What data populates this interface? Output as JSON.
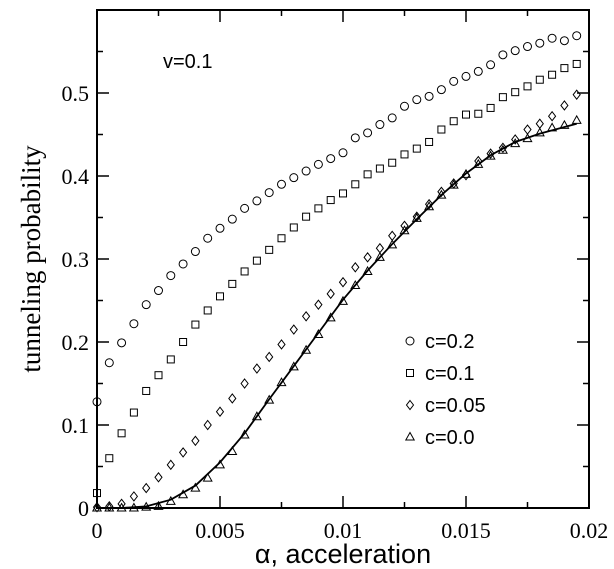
{
  "chart_data": {
    "type": "scatter",
    "title": "",
    "xlabel": "α, acceleration",
    "ylabel": "tunneling probability",
    "xlim": [
      0,
      0.02
    ],
    "ylim": [
      0,
      0.6
    ],
    "x_ticks": [
      "0",
      "0.005",
      "0.01",
      "0.015",
      "0.02"
    ],
    "y_ticks": [
      "0",
      "0.1",
      "0.2",
      "0.3",
      "0.4",
      "0.5"
    ],
    "annotation": "v=0.1",
    "grid": false,
    "legend_position": "bottom-right",
    "series": [
      {
        "name": "c=0.2",
        "marker": "circle",
        "points": [
          [
            0.0,
            0.128
          ],
          [
            0.0005,
            0.175
          ],
          [
            0.001,
            0.199
          ],
          [
            0.0015,
            0.222
          ],
          [
            0.002,
            0.245
          ],
          [
            0.0025,
            0.262
          ],
          [
            0.003,
            0.28
          ],
          [
            0.0035,
            0.294
          ],
          [
            0.004,
            0.309
          ],
          [
            0.0045,
            0.325
          ],
          [
            0.005,
            0.337
          ],
          [
            0.0055,
            0.348
          ],
          [
            0.006,
            0.361
          ],
          [
            0.0065,
            0.37
          ],
          [
            0.007,
            0.38
          ],
          [
            0.0075,
            0.39
          ],
          [
            0.008,
            0.398
          ],
          [
            0.0085,
            0.406
          ],
          [
            0.009,
            0.414
          ],
          [
            0.0095,
            0.421
          ],
          [
            0.01,
            0.428
          ],
          [
            0.0105,
            0.446
          ],
          [
            0.011,
            0.452
          ],
          [
            0.0115,
            0.462
          ],
          [
            0.012,
            0.47
          ],
          [
            0.0125,
            0.484
          ],
          [
            0.013,
            0.492
          ],
          [
            0.0135,
            0.496
          ],
          [
            0.014,
            0.504
          ],
          [
            0.0145,
            0.514
          ],
          [
            0.015,
            0.52
          ],
          [
            0.0155,
            0.526
          ],
          [
            0.016,
            0.534
          ],
          [
            0.0165,
            0.546
          ],
          [
            0.017,
            0.551
          ],
          [
            0.0175,
            0.556
          ],
          [
            0.018,
            0.56
          ],
          [
            0.0185,
            0.566
          ],
          [
            0.019,
            0.563
          ],
          [
            0.0195,
            0.569
          ]
        ]
      },
      {
        "name": "c=0.1",
        "marker": "square",
        "points": [
          [
            0.0,
            0.018
          ],
          [
            0.0005,
            0.06
          ],
          [
            0.001,
            0.09
          ],
          [
            0.0015,
            0.115
          ],
          [
            0.002,
            0.141
          ],
          [
            0.0025,
            0.16
          ],
          [
            0.003,
            0.179
          ],
          [
            0.0035,
            0.2
          ],
          [
            0.004,
            0.221
          ],
          [
            0.0045,
            0.238
          ],
          [
            0.005,
            0.255
          ],
          [
            0.0055,
            0.27
          ],
          [
            0.006,
            0.285
          ],
          [
            0.0065,
            0.298
          ],
          [
            0.007,
            0.311
          ],
          [
            0.0075,
            0.325
          ],
          [
            0.008,
            0.338
          ],
          [
            0.0085,
            0.351
          ],
          [
            0.009,
            0.361
          ],
          [
            0.0095,
            0.371
          ],
          [
            0.01,
            0.379
          ],
          [
            0.0105,
            0.39
          ],
          [
            0.011,
            0.402
          ],
          [
            0.0115,
            0.409
          ],
          [
            0.012,
            0.416
          ],
          [
            0.0125,
            0.426
          ],
          [
            0.013,
            0.433
          ],
          [
            0.0135,
            0.441
          ],
          [
            0.014,
            0.456
          ],
          [
            0.0145,
            0.466
          ],
          [
            0.015,
            0.474
          ],
          [
            0.0155,
            0.475
          ],
          [
            0.016,
            0.482
          ],
          [
            0.0165,
            0.495
          ],
          [
            0.017,
            0.501
          ],
          [
            0.0175,
            0.508
          ],
          [
            0.018,
            0.516
          ],
          [
            0.0185,
            0.522
          ],
          [
            0.019,
            0.53
          ],
          [
            0.0195,
            0.535
          ]
        ]
      },
      {
        "name": "c=0.05",
        "marker": "diamond",
        "points": [
          [
            0.0,
            0.001
          ],
          [
            0.0005,
            0.002
          ],
          [
            0.001,
            0.005
          ],
          [
            0.0015,
            0.014
          ],
          [
            0.002,
            0.024
          ],
          [
            0.0025,
            0.037
          ],
          [
            0.003,
            0.052
          ],
          [
            0.0035,
            0.067
          ],
          [
            0.004,
            0.081
          ],
          [
            0.0045,
            0.1
          ],
          [
            0.005,
            0.116
          ],
          [
            0.0055,
            0.132
          ],
          [
            0.006,
            0.15
          ],
          [
            0.0065,
            0.168
          ],
          [
            0.007,
            0.182
          ],
          [
            0.0075,
            0.197
          ],
          [
            0.008,
            0.215
          ],
          [
            0.0085,
            0.231
          ],
          [
            0.009,
            0.245
          ],
          [
            0.0095,
            0.258
          ],
          [
            0.01,
            0.272
          ],
          [
            0.0105,
            0.29
          ],
          [
            0.011,
            0.302
          ],
          [
            0.0115,
            0.313
          ],
          [
            0.012,
            0.328
          ],
          [
            0.0125,
            0.34
          ],
          [
            0.013,
            0.351
          ],
          [
            0.0135,
            0.366
          ],
          [
            0.014,
            0.381
          ],
          [
            0.0145,
            0.391
          ],
          [
            0.015,
            0.401
          ],
          [
            0.0155,
            0.418
          ],
          [
            0.016,
            0.427
          ],
          [
            0.0165,
            0.434
          ],
          [
            0.017,
            0.444
          ],
          [
            0.0175,
            0.456
          ],
          [
            0.018,
            0.463
          ],
          [
            0.0185,
            0.472
          ],
          [
            0.019,
            0.485
          ],
          [
            0.0195,
            0.498
          ]
        ]
      },
      {
        "name": "c=0.0",
        "marker": "triangle",
        "points": [
          [
            0.0,
            0.0
          ],
          [
            0.0005,
            0.0
          ],
          [
            0.001,
            0.0
          ],
          [
            0.0015,
            0.0
          ],
          [
            0.002,
            0.001
          ],
          [
            0.0025,
            0.002
          ],
          [
            0.003,
            0.008
          ],
          [
            0.0035,
            0.016
          ],
          [
            0.004,
            0.024
          ],
          [
            0.0045,
            0.036
          ],
          [
            0.005,
            0.052
          ],
          [
            0.0055,
            0.068
          ],
          [
            0.006,
            0.088
          ],
          [
            0.0065,
            0.11
          ],
          [
            0.007,
            0.13
          ],
          [
            0.0075,
            0.151
          ],
          [
            0.008,
            0.17
          ],
          [
            0.0085,
            0.19
          ],
          [
            0.009,
            0.209
          ],
          [
            0.0095,
            0.229
          ],
          [
            0.01,
            0.249
          ],
          [
            0.0105,
            0.268
          ],
          [
            0.011,
            0.285
          ],
          [
            0.0115,
            0.302
          ],
          [
            0.012,
            0.317
          ],
          [
            0.0125,
            0.334
          ],
          [
            0.013,
            0.349
          ],
          [
            0.0135,
            0.363
          ],
          [
            0.014,
            0.377
          ],
          [
            0.0145,
            0.389
          ],
          [
            0.015,
            0.402
          ],
          [
            0.0155,
            0.414
          ],
          [
            0.016,
            0.424
          ],
          [
            0.0165,
            0.431
          ],
          [
            0.017,
            0.439
          ],
          [
            0.0175,
            0.445
          ],
          [
            0.018,
            0.452
          ],
          [
            0.0185,
            0.458
          ],
          [
            0.019,
            0.461
          ],
          [
            0.0195,
            0.467
          ]
        ]
      }
    ],
    "fit_line": {
      "style": "solid",
      "color": "#000000",
      "points": [
        [
          0.0,
          0.0
        ],
        [
          0.001,
          0.0
        ],
        [
          0.002,
          0.002
        ],
        [
          0.003,
          0.01
        ],
        [
          0.004,
          0.027
        ],
        [
          0.005,
          0.055
        ],
        [
          0.006,
          0.09
        ],
        [
          0.007,
          0.131
        ],
        [
          0.008,
          0.171
        ],
        [
          0.009,
          0.211
        ],
        [
          0.01,
          0.251
        ],
        [
          0.011,
          0.286
        ],
        [
          0.012,
          0.318
        ],
        [
          0.013,
          0.348
        ],
        [
          0.014,
          0.377
        ],
        [
          0.015,
          0.403
        ],
        [
          0.016,
          0.425
        ],
        [
          0.017,
          0.441
        ],
        [
          0.018,
          0.451
        ],
        [
          0.0195,
          0.463
        ]
      ]
    }
  }
}
